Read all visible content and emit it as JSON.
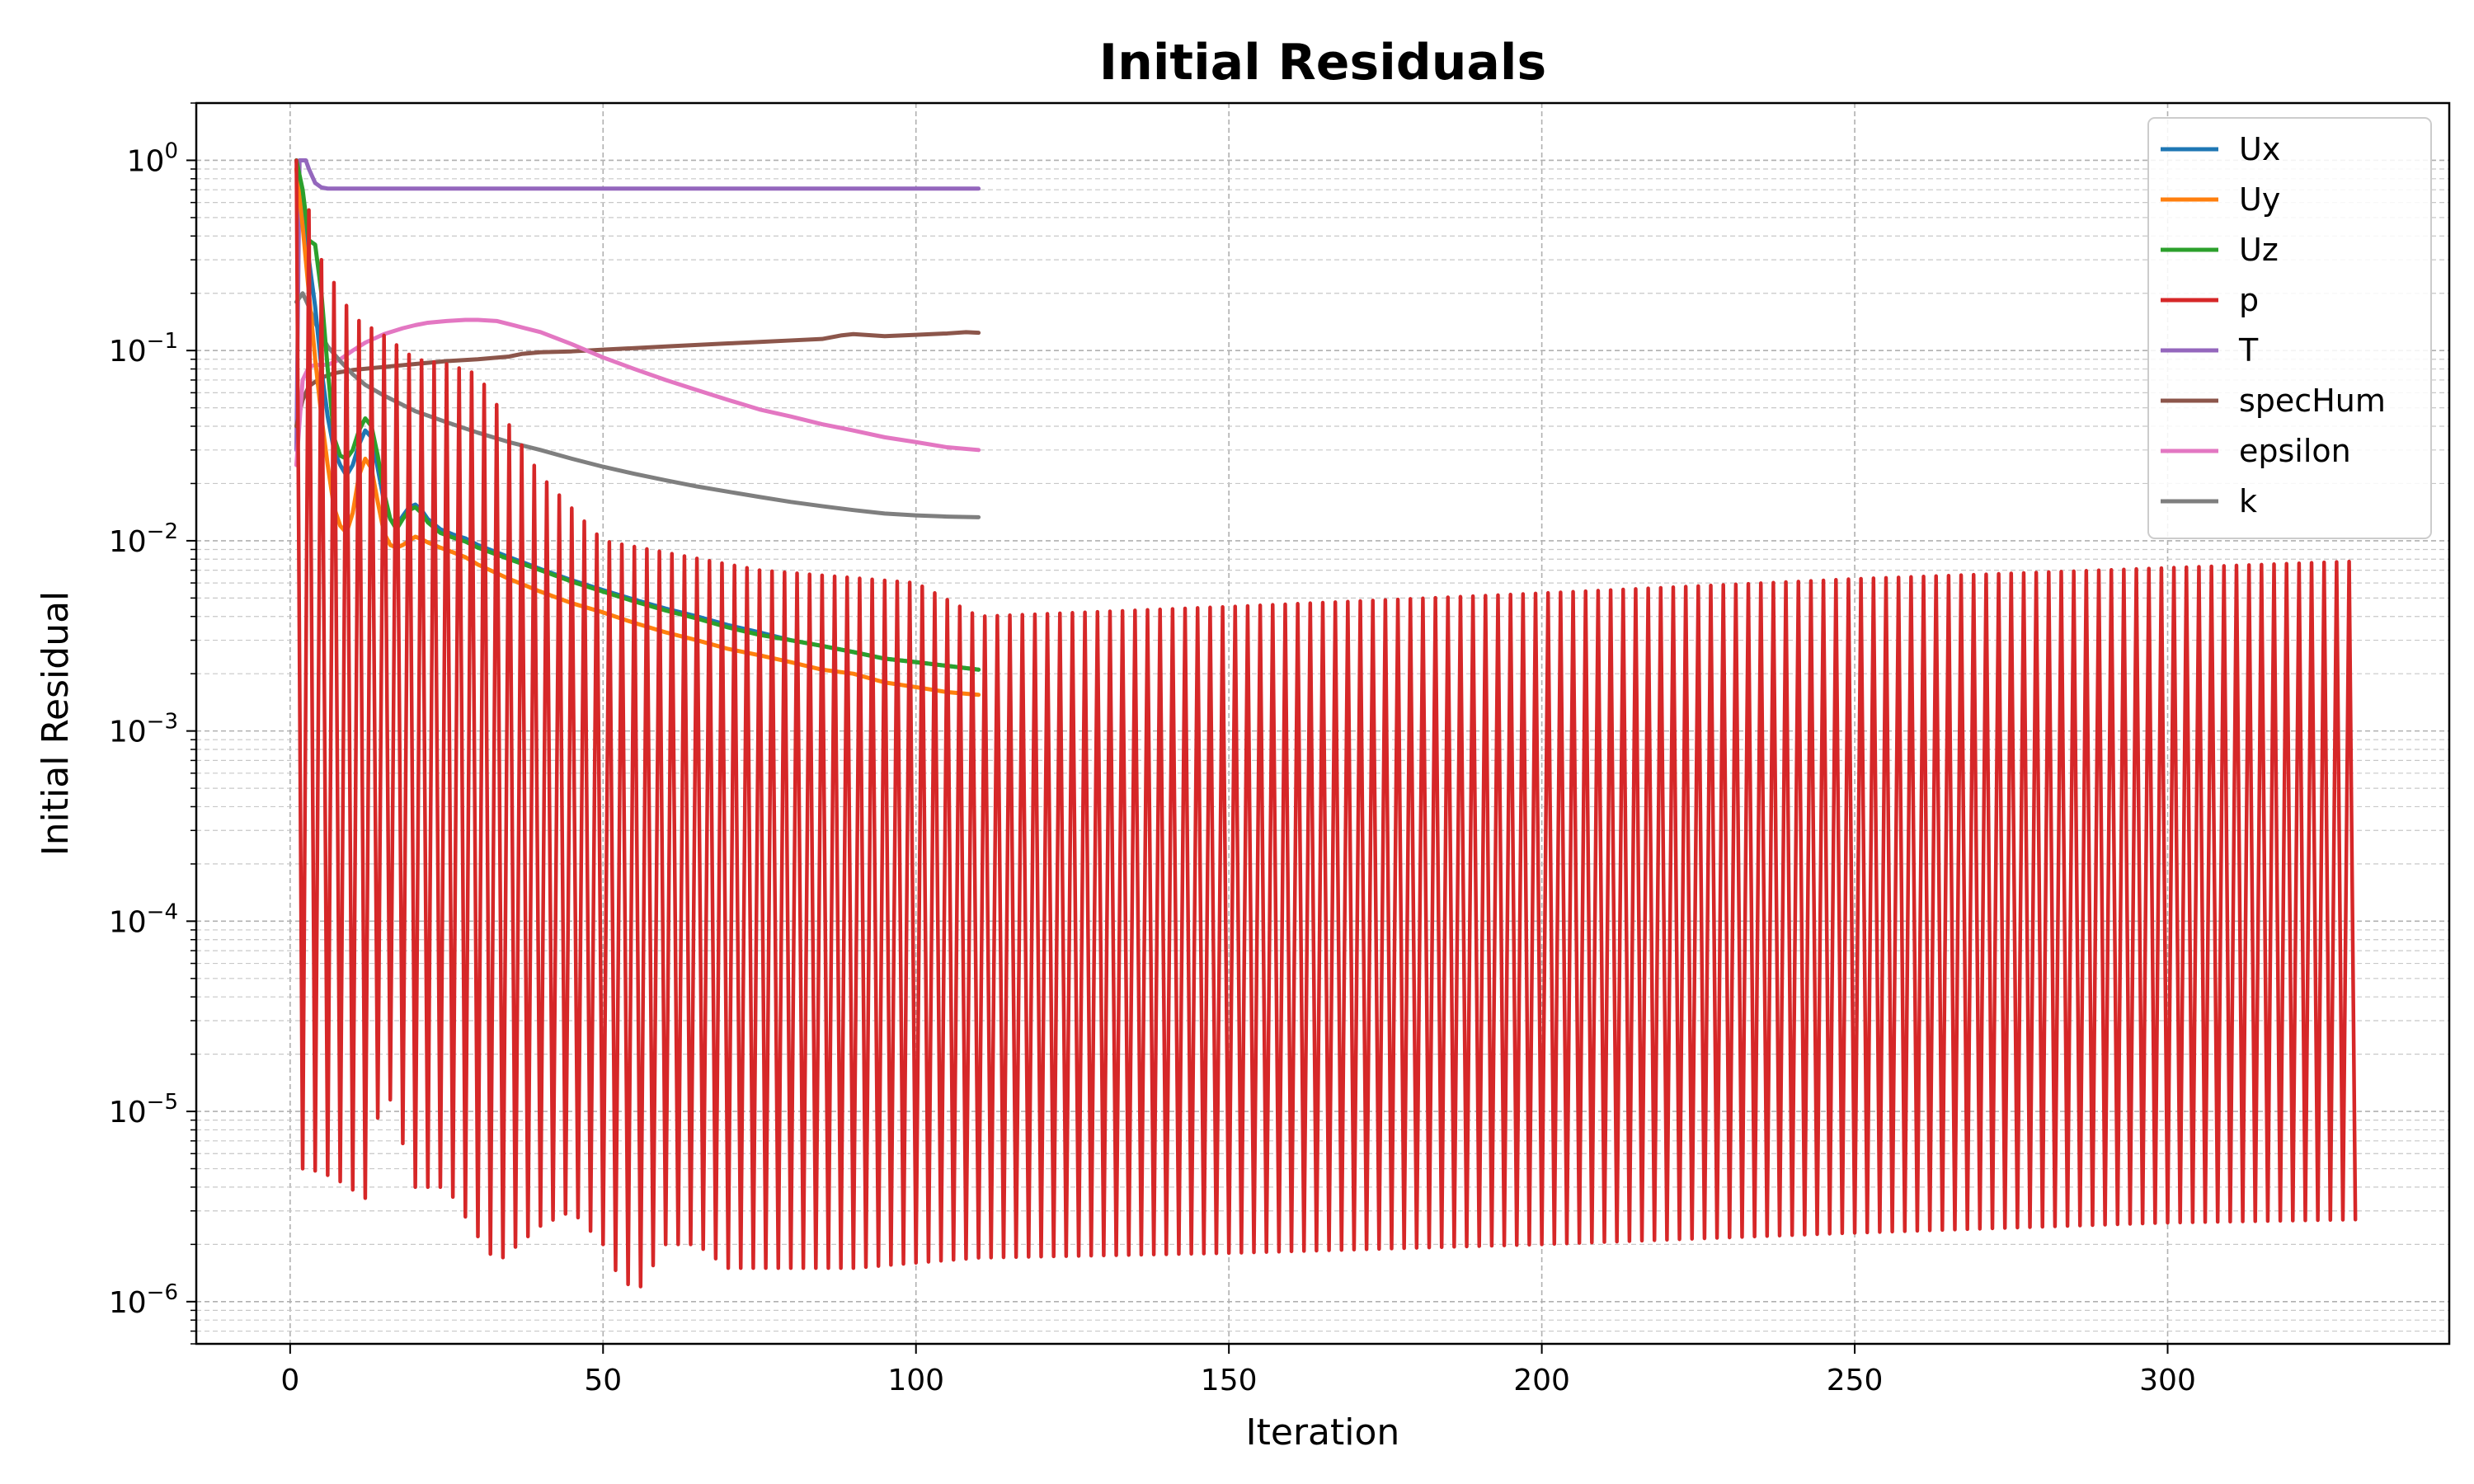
{
  "chart_data": {
    "type": "line",
    "title": "Initial Residuals",
    "xlabel": "Iteration",
    "ylabel": "Initial Residual",
    "xlim": [
      -15,
      345
    ],
    "ylim": [
      6e-07,
      2
    ],
    "yscale": "log",
    "grid": true,
    "legend_position": "top-right",
    "x_ticks": [
      0,
      50,
      100,
      150,
      200,
      250,
      300
    ],
    "y_ticks": [
      {
        "value": 1e-06,
        "base": "10",
        "exp": "−6"
      },
      {
        "value": 1e-05,
        "base": "10",
        "exp": "−5"
      },
      {
        "value": 0.0001,
        "base": "10",
        "exp": "−4"
      },
      {
        "value": 0.001,
        "base": "10",
        "exp": "−3"
      },
      {
        "value": 0.01,
        "base": "10",
        "exp": "−2"
      },
      {
        "value": 0.1,
        "base": "10",
        "exp": "−1"
      },
      {
        "value": 1,
        "base": "10",
        "exp": "0"
      }
    ],
    "series": [
      {
        "name": "Ux",
        "color": "#1f77b4",
        "points": [
          [
            1,
            1.0
          ],
          [
            2,
            0.6
          ],
          [
            3,
            0.3
          ],
          [
            4,
            0.17
          ],
          [
            5,
            0.08
          ],
          [
            6,
            0.045
          ],
          [
            7,
            0.03
          ],
          [
            8,
            0.025
          ],
          [
            9,
            0.022
          ],
          [
            10,
            0.025
          ],
          [
            11,
            0.032
          ],
          [
            12,
            0.038
          ],
          [
            13,
            0.035
          ],
          [
            14,
            0.024
          ],
          [
            15,
            0.016
          ],
          [
            16,
            0.013
          ],
          [
            17,
            0.012
          ],
          [
            18,
            0.0135
          ],
          [
            19,
            0.015
          ],
          [
            20,
            0.0155
          ],
          [
            21,
            0.0145
          ],
          [
            22,
            0.013
          ],
          [
            24,
            0.0115
          ],
          [
            26,
            0.0108
          ],
          [
            28,
            0.0103
          ],
          [
            30,
            0.0095
          ],
          [
            35,
            0.0082
          ],
          [
            40,
            0.0071
          ],
          [
            45,
            0.0062
          ],
          [
            50,
            0.0055
          ],
          [
            55,
            0.0049
          ],
          [
            60,
            0.0044
          ],
          [
            65,
            0.004
          ],
          [
            70,
            0.0036
          ],
          [
            75,
            0.0033
          ],
          [
            80,
            0.003
          ],
          [
            85,
            0.0028
          ],
          [
            90,
            0.0026
          ],
          [
            95,
            0.0024
          ],
          [
            100,
            0.0023
          ],
          [
            105,
            0.0022
          ],
          [
            110,
            0.0021
          ]
        ]
      },
      {
        "name": "Uy",
        "color": "#ff7f0e",
        "points": [
          [
            1,
            0.9
          ],
          [
            2,
            0.45
          ],
          [
            3,
            0.2
          ],
          [
            4,
            0.09
          ],
          [
            5,
            0.045
          ],
          [
            6,
            0.025
          ],
          [
            7,
            0.015
          ],
          [
            8,
            0.012
          ],
          [
            9,
            0.011
          ],
          [
            10,
            0.014
          ],
          [
            11,
            0.022
          ],
          [
            12,
            0.027
          ],
          [
            13,
            0.024
          ],
          [
            14,
            0.016
          ],
          [
            15,
            0.011
          ],
          [
            16,
            0.0095
          ],
          [
            17,
            0.0092
          ],
          [
            18,
            0.0095
          ],
          [
            19,
            0.01
          ],
          [
            20,
            0.0105
          ],
          [
            21,
            0.0102
          ],
          [
            22,
            0.0098
          ],
          [
            24,
            0.0092
          ],
          [
            26,
            0.0087
          ],
          [
            28,
            0.0082
          ],
          [
            30,
            0.0075
          ],
          [
            35,
            0.0063
          ],
          [
            40,
            0.0054
          ],
          [
            45,
            0.0047
          ],
          [
            50,
            0.0042
          ],
          [
            55,
            0.0037
          ],
          [
            60,
            0.0033
          ],
          [
            65,
            0.003
          ],
          [
            70,
            0.0027
          ],
          [
            75,
            0.0025
          ],
          [
            80,
            0.0023
          ],
          [
            85,
            0.0021
          ],
          [
            90,
            0.002
          ],
          [
            95,
            0.0018
          ],
          [
            100,
            0.0017
          ],
          [
            105,
            0.0016
          ],
          [
            110,
            0.00155
          ]
        ]
      },
      {
        "name": "Uz",
        "color": "#2ca02c",
        "points": [
          [
            1,
            1.0
          ],
          [
            2,
            0.7
          ],
          [
            3,
            0.38
          ],
          [
            4,
            0.36
          ],
          [
            5,
            0.2
          ],
          [
            6,
            0.08
          ],
          [
            7,
            0.035
          ],
          [
            8,
            0.028
          ],
          [
            9,
            0.027
          ],
          [
            10,
            0.03
          ],
          [
            11,
            0.038
          ],
          [
            12,
            0.044
          ],
          [
            13,
            0.04
          ],
          [
            14,
            0.028
          ],
          [
            15,
            0.018
          ],
          [
            16,
            0.013
          ],
          [
            17,
            0.0115
          ],
          [
            18,
            0.013
          ],
          [
            19,
            0.0145
          ],
          [
            20,
            0.015
          ],
          [
            21,
            0.014
          ],
          [
            22,
            0.0125
          ],
          [
            24,
            0.011
          ],
          [
            26,
            0.0104
          ],
          [
            28,
            0.0099
          ],
          [
            30,
            0.0092
          ],
          [
            35,
            0.008
          ],
          [
            40,
            0.007
          ],
          [
            45,
            0.0061
          ],
          [
            50,
            0.0054
          ],
          [
            55,
            0.0048
          ],
          [
            60,
            0.0043
          ],
          [
            65,
            0.0039
          ],
          [
            70,
            0.0035
          ],
          [
            75,
            0.0032
          ],
          [
            80,
            0.003
          ],
          [
            85,
            0.0028
          ],
          [
            90,
            0.0026
          ],
          [
            95,
            0.0024
          ],
          [
            100,
            0.0023
          ],
          [
            105,
            0.0022
          ],
          [
            110,
            0.0021
          ]
        ]
      },
      {
        "name": "p",
        "color": "#d62728",
        "points": []
      },
      {
        "name": "T",
        "color": "#9467bd",
        "points": [
          [
            1,
            0.03
          ],
          [
            1.5,
            1.0
          ],
          [
            2.5,
            1.0
          ],
          [
            3,
            0.9
          ],
          [
            4,
            0.76
          ],
          [
            5,
            0.72
          ],
          [
            6,
            0.71
          ],
          [
            10,
            0.71
          ],
          [
            20,
            0.71
          ],
          [
            40,
            0.71
          ],
          [
            60,
            0.71
          ],
          [
            80,
            0.71
          ],
          [
            100,
            0.71
          ],
          [
            110,
            0.71
          ]
        ]
      },
      {
        "name": "specHum",
        "color": "#8c564b",
        "points": [
          [
            1,
            0.04
          ],
          [
            2,
            0.055
          ],
          [
            3,
            0.065
          ],
          [
            5,
            0.072
          ],
          [
            7,
            0.076
          ],
          [
            10,
            0.079
          ],
          [
            15,
            0.082
          ],
          [
            20,
            0.085
          ],
          [
            25,
            0.088
          ],
          [
            30,
            0.09
          ],
          [
            35,
            0.093
          ],
          [
            37,
            0.096
          ],
          [
            40,
            0.098
          ],
          [
            45,
            0.099
          ],
          [
            50,
            0.101
          ],
          [
            55,
            0.103
          ],
          [
            60,
            0.105
          ],
          [
            65,
            0.107
          ],
          [
            70,
            0.109
          ],
          [
            75,
            0.111
          ],
          [
            80,
            0.113
          ],
          [
            85,
            0.115
          ],
          [
            88,
            0.12
          ],
          [
            90,
            0.122
          ],
          [
            95,
            0.119
          ],
          [
            100,
            0.121
          ],
          [
            105,
            0.123
          ],
          [
            108,
            0.125
          ],
          [
            110,
            0.124
          ]
        ]
      },
      {
        "name": "epsilon",
        "color": "#e377c2",
        "points": [
          [
            1,
            0.025
          ],
          [
            2,
            0.07
          ],
          [
            3,
            0.082
          ],
          [
            4,
            0.084
          ],
          [
            6,
            0.084
          ],
          [
            8,
            0.09
          ],
          [
            10,
            0.1
          ],
          [
            12,
            0.11
          ],
          [
            15,
            0.122
          ],
          [
            18,
            0.131
          ],
          [
            20,
            0.136
          ],
          [
            22,
            0.14
          ],
          [
            25,
            0.143
          ],
          [
            28,
            0.145
          ],
          [
            30,
            0.145
          ],
          [
            33,
            0.143
          ],
          [
            36,
            0.135
          ],
          [
            40,
            0.125
          ],
          [
            45,
            0.108
          ],
          [
            50,
            0.092
          ],
          [
            55,
            0.08
          ],
          [
            60,
            0.07
          ],
          [
            65,
            0.062
          ],
          [
            70,
            0.055
          ],
          [
            75,
            0.049
          ],
          [
            80,
            0.045
          ],
          [
            85,
            0.041
          ],
          [
            90,
            0.038
          ],
          [
            95,
            0.035
          ],
          [
            100,
            0.033
          ],
          [
            105,
            0.031
          ],
          [
            110,
            0.03
          ]
        ]
      },
      {
        "name": "k",
        "color": "#7f7f7f",
        "points": [
          [
            1,
            0.18
          ],
          [
            2,
            0.2
          ],
          [
            3,
            0.17
          ],
          [
            4,
            0.14
          ],
          [
            5,
            0.12
          ],
          [
            6,
            0.105
          ],
          [
            8,
            0.088
          ],
          [
            10,
            0.075
          ],
          [
            12,
            0.066
          ],
          [
            15,
            0.058
          ],
          [
            20,
            0.048
          ],
          [
            25,
            0.042
          ],
          [
            30,
            0.037
          ],
          [
            35,
            0.033
          ],
          [
            40,
            0.03
          ],
          [
            45,
            0.027
          ],
          [
            50,
            0.0245
          ],
          [
            55,
            0.0225
          ],
          [
            60,
            0.0208
          ],
          [
            65,
            0.0193
          ],
          [
            70,
            0.0181
          ],
          [
            75,
            0.017
          ],
          [
            80,
            0.016
          ],
          [
            85,
            0.0152
          ],
          [
            90,
            0.0145
          ],
          [
            95,
            0.0139
          ],
          [
            100,
            0.0136
          ],
          [
            105,
            0.0134
          ],
          [
            110,
            0.0133
          ]
        ]
      }
    ],
    "p_pattern": {
      "x_start": 1,
      "x_end": 330,
      "peaks": [
        [
          1,
          1.0
        ],
        [
          5,
          0.3
        ],
        [
          10,
          0.15
        ],
        [
          15,
          0.12
        ],
        [
          20,
          0.09
        ],
        [
          25,
          0.085
        ],
        [
          30,
          0.075
        ],
        [
          40,
          0.022
        ],
        [
          50,
          0.01
        ],
        [
          75,
          0.007
        ],
        [
          100,
          0.006
        ],
        [
          110,
          0.004
        ],
        [
          150,
          0.0045
        ],
        [
          200,
          0.0053
        ],
        [
          250,
          0.0063
        ],
        [
          300,
          0.0072
        ],
        [
          330,
          0.0078
        ]
      ],
      "troughs": [
        [
          3,
          5e-06
        ],
        [
          7,
          4.5e-06
        ],
        [
          12,
          3.5e-06
        ],
        [
          15,
          1.5e-05
        ],
        [
          20,
          4e-06
        ],
        [
          25,
          4e-06
        ],
        [
          30,
          2.2e-06
        ],
        [
          33,
          1.6e-06
        ],
        [
          40,
          2.5e-06
        ],
        [
          45,
          3e-06
        ],
        [
          50,
          2e-06
        ],
        [
          53,
          1.25e-06
        ],
        [
          56,
          1.2e-06
        ],
        [
          60,
          2e-06
        ],
        [
          65,
          2e-06
        ],
        [
          70,
          1.5e-06
        ],
        [
          80,
          1.5e-06
        ],
        [
          90,
          1.5e-06
        ],
        [
          100,
          1.6e-06
        ],
        [
          110,
          1.7e-06
        ],
        [
          150,
          1.8e-06
        ],
        [
          200,
          2e-06
        ],
        [
          250,
          2.3e-06
        ],
        [
          300,
          2.6e-06
        ],
        [
          330,
          2.7e-06
        ]
      ]
    }
  }
}
